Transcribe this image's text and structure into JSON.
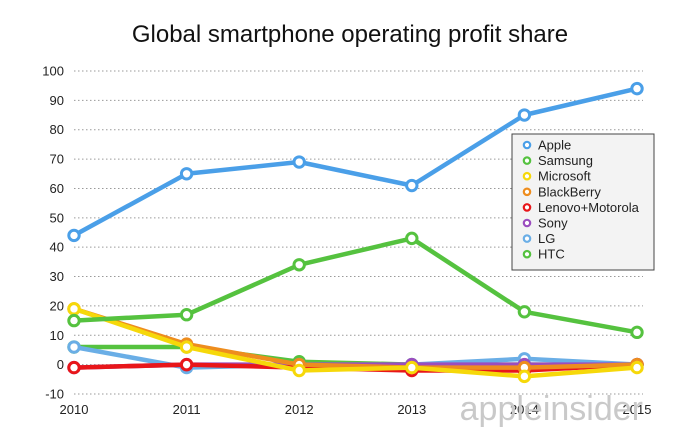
{
  "chart_data": {
    "type": "line",
    "title": "Global smartphone operating profit share",
    "xlabel": "",
    "ylabel": "",
    "categories": [
      "2010",
      "2011",
      "2012",
      "2013",
      "2014",
      "2015"
    ],
    "ylim": [
      -10,
      100
    ],
    "yticks": [
      -10,
      0,
      10,
      20,
      30,
      40,
      50,
      60,
      70,
      80,
      90,
      100
    ],
    "grid": true,
    "legend_position": "right",
    "series": [
      {
        "name": "Apple",
        "color": "#4a9fe8",
        "values": [
          44,
          65,
          69,
          61,
          85,
          94
        ]
      },
      {
        "name": "Samsung",
        "color": "#55c23f",
        "values": [
          15,
          17,
          34,
          43,
          18,
          11
        ]
      },
      {
        "name": "Microsoft",
        "color": "#f6d80a",
        "values": [
          19,
          6,
          -2,
          -1,
          -4,
          -1
        ]
      },
      {
        "name": "BlackBerry",
        "color": "#ee8d1e",
        "values": [
          19,
          7,
          0,
          -1,
          -1,
          0
        ]
      },
      {
        "name": "Lenovo+Motorola",
        "color": "#e8161a",
        "values": [
          -1,
          0,
          -1,
          -2,
          -2,
          0
        ]
      },
      {
        "name": "Sony",
        "color": "#9b4dbf",
        "values": [
          -1,
          0,
          0,
          0,
          0,
          0
        ]
      },
      {
        "name": "LG",
        "color": "#6aaee6",
        "values": [
          6,
          -1,
          0,
          0,
          2,
          0
        ]
      },
      {
        "name": "HTC",
        "color": "#55c23f",
        "values": [
          6,
          6,
          1,
          0,
          0,
          0
        ]
      }
    ]
  },
  "watermark": {
    "text": "appleinsider"
  }
}
